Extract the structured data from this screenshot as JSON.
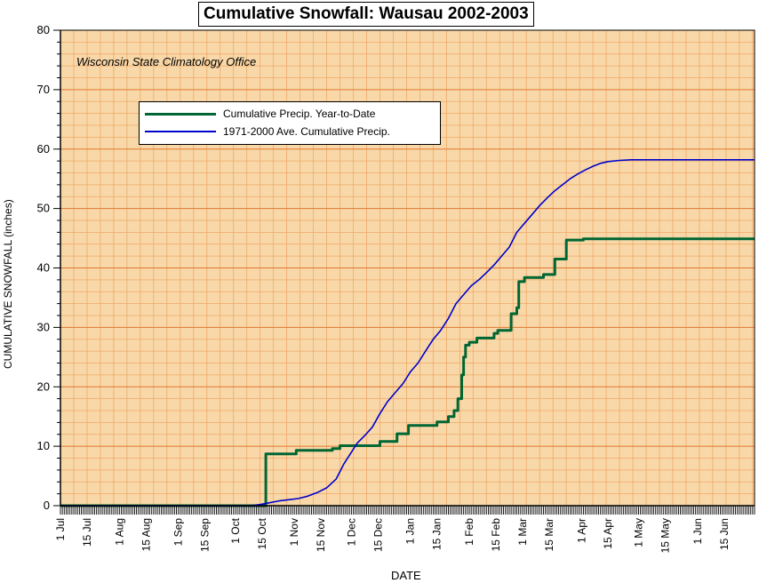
{
  "chart_data": {
    "type": "line",
    "title": "Cumulative Snowfall: Wausau 2002-2003",
    "annotation": "Wisconsin State Climatology Office",
    "xlabel": "DATE",
    "ylabel": "CUMULATIVE SNOWFALL (inches)",
    "ylim": [
      0,
      80
    ],
    "yticks": [
      0,
      10,
      20,
      30,
      40,
      50,
      60,
      70,
      80
    ],
    "x_range_days": [
      0,
      365
    ],
    "xticks": [
      {
        "label": "1 Jul",
        "day": 0
      },
      {
        "label": "15 Jul",
        "day": 14
      },
      {
        "label": "1 Aug",
        "day": 31
      },
      {
        "label": "15 Aug",
        "day": 45
      },
      {
        "label": "1 Sep",
        "day": 62
      },
      {
        "label": "15 Sep",
        "day": 76
      },
      {
        "label": "1 Oct",
        "day": 92
      },
      {
        "label": "15 Oct",
        "day": 106
      },
      {
        "label": "1 Nov",
        "day": 123
      },
      {
        "label": "15 Nov",
        "day": 137
      },
      {
        "label": "1 Dec",
        "day": 153
      },
      {
        "label": "15 Dec",
        "day": 167
      },
      {
        "label": "1 Jan",
        "day": 184
      },
      {
        "label": "15 Jan",
        "day": 198
      },
      {
        "label": "1 Feb",
        "day": 215
      },
      {
        "label": "15 Feb",
        "day": 229
      },
      {
        "label": "1 Mar",
        "day": 243
      },
      {
        "label": "15 Mar",
        "day": 257
      },
      {
        "label": "1 Apr",
        "day": 274
      },
      {
        "label": "15 Apr",
        "day": 288
      },
      {
        "label": "1 May",
        "day": 304
      },
      {
        "label": "15 May",
        "day": 318
      },
      {
        "label": "1 Jun",
        "day": 335
      },
      {
        "label": "15 Jun",
        "day": 349
      }
    ],
    "grid": true,
    "legend_position": "top-left",
    "series": [
      {
        "name": "Cumulative Precip. Year-to-Date",
        "color": "#006633",
        "style": "step",
        "points": [
          [
            0,
            0
          ],
          [
            108,
            0
          ],
          [
            108,
            8.7
          ],
          [
            124,
            8.7
          ],
          [
            124,
            9.3
          ],
          [
            143,
            9.3
          ],
          [
            143,
            9.6
          ],
          [
            147,
            9.6
          ],
          [
            147,
            10.1
          ],
          [
            168,
            10.1
          ],
          [
            168,
            10.8
          ],
          [
            177,
            10.8
          ],
          [
            177,
            12.1
          ],
          [
            183,
            12.1
          ],
          [
            183,
            13.5
          ],
          [
            198,
            13.5
          ],
          [
            198,
            14.1
          ],
          [
            204,
            14.1
          ],
          [
            204,
            15
          ],
          [
            207,
            15
          ],
          [
            207,
            16
          ],
          [
            209,
            16
          ],
          [
            209,
            18
          ],
          [
            211,
            18
          ],
          [
            211,
            22
          ],
          [
            212,
            22
          ],
          [
            212,
            25
          ],
          [
            213,
            25
          ],
          [
            213,
            27
          ],
          [
            215,
            27
          ],
          [
            215,
            27.5
          ],
          [
            219,
            27.5
          ],
          [
            219,
            28.2
          ],
          [
            228,
            28.2
          ],
          [
            228,
            29
          ],
          [
            230,
            29
          ],
          [
            230,
            29.5
          ],
          [
            237,
            29.5
          ],
          [
            237,
            32.3
          ],
          [
            240,
            32.3
          ],
          [
            240,
            33.3
          ],
          [
            241,
            33.3
          ],
          [
            241,
            37.7
          ],
          [
            244,
            37.7
          ],
          [
            244,
            38.4
          ],
          [
            254,
            38.4
          ],
          [
            254,
            38.9
          ],
          [
            260,
            38.9
          ],
          [
            260,
            41.5
          ],
          [
            266,
            41.5
          ],
          [
            266,
            44.7
          ],
          [
            275,
            44.7
          ],
          [
            275,
            44.9
          ],
          [
            365,
            44.9
          ]
        ]
      },
      {
        "name": "1971-2000 Ave. Cumulative Precip.",
        "color": "#0000cc",
        "style": "line",
        "points": [
          [
            0,
            0
          ],
          [
            100,
            0
          ],
          [
            105,
            0.2
          ],
          [
            110,
            0.5
          ],
          [
            115,
            0.8
          ],
          [
            120,
            1
          ],
          [
            125,
            1.2
          ],
          [
            130,
            1.6
          ],
          [
            135,
            2.2
          ],
          [
            140,
            3
          ],
          [
            145,
            4.5
          ],
          [
            149,
            7
          ],
          [
            153,
            9
          ],
          [
            156,
            10.5
          ],
          [
            160,
            11.8
          ],
          [
            164,
            13.2
          ],
          [
            168,
            15.5
          ],
          [
            172,
            17.5
          ],
          [
            176,
            19
          ],
          [
            180,
            20.5
          ],
          [
            184,
            22.5
          ],
          [
            188,
            24
          ],
          [
            192,
            26
          ],
          [
            196,
            28
          ],
          [
            200,
            29.5
          ],
          [
            204,
            31.5
          ],
          [
            208,
            34
          ],
          [
            212,
            35.5
          ],
          [
            216,
            37
          ],
          [
            220,
            38
          ],
          [
            224,
            39.2
          ],
          [
            228,
            40.5
          ],
          [
            232,
            42
          ],
          [
            236,
            43.5
          ],
          [
            240,
            46
          ],
          [
            244,
            47.5
          ],
          [
            248,
            49
          ],
          [
            252,
            50.5
          ],
          [
            256,
            51.8
          ],
          [
            260,
            53
          ],
          [
            264,
            54
          ],
          [
            268,
            55
          ],
          [
            272,
            55.8
          ],
          [
            276,
            56.5
          ],
          [
            280,
            57.1
          ],
          [
            284,
            57.6
          ],
          [
            288,
            57.9
          ],
          [
            294,
            58.1
          ],
          [
            300,
            58.2
          ],
          [
            365,
            58.2
          ]
        ]
      }
    ]
  }
}
